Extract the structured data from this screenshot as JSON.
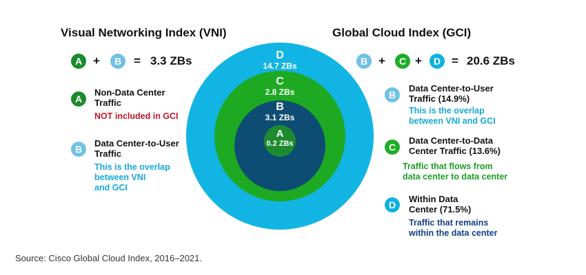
{
  "colors": {
    "a_green": "#1b8a2e",
    "b_lightblue": "#6fc1e6",
    "c_green": "#1cae26",
    "d_cyan": "#0fb1e0",
    "ring_d": "#12b4e3",
    "ring_c": "#1daa22",
    "ring_b": "#0e4d73",
    "ring_a": "#1c8a2f",
    "red_note": "#c0192b",
    "cyan_note": "#17a9d8",
    "green_note": "#1c9e22",
    "navy_note": "#123f86"
  },
  "vni": {
    "title": "Visual Networking Index (VNI)",
    "equation": {
      "terms": [
        "A",
        "B"
      ],
      "plus": "+",
      "equals": "=",
      "result": "3.3 ZBs"
    },
    "items": [
      {
        "badge": "A",
        "title_line1": "Non-Data Center",
        "title_line2": "Traffic",
        "note_lines": [
          "NOT included in GCI"
        ]
      },
      {
        "badge": "B",
        "title_line1": "Data Center-to-User",
        "title_line2": "Traffic",
        "note_lines": [
          "This is the overlap",
          "between VNI",
          "and GCI"
        ]
      }
    ]
  },
  "gci": {
    "title": "Global Cloud Index (GCI)",
    "equation": {
      "terms": [
        "B",
        "C",
        "D"
      ],
      "plus": "+",
      "equals": "=",
      "result": "20.6 ZBs"
    },
    "items": [
      {
        "badge": "B",
        "title_line1": "Data Center-to-User",
        "title_line2": "Traffic (14.9%)",
        "note_lines": [
          "This is the overlap",
          "between VNI and GCI"
        ]
      },
      {
        "badge": "C",
        "title_line1": "Data Center-to-Data",
        "title_line2": "Center Traffic (13.6%)",
        "note_lines": [
          "Traffic that flows from",
          "data center to data center"
        ]
      },
      {
        "badge": "D",
        "title_line1": "Within Data",
        "title_line2": "Center (71.5%)",
        "note_lines": [
          "Traffic that remains",
          "within the data center"
        ]
      }
    ]
  },
  "rings": [
    {
      "letter": "D",
      "value": "14.7 ZBs"
    },
    {
      "letter": "C",
      "value": "2.8 ZBs"
    },
    {
      "letter": "B",
      "value": "3.1 ZBs"
    },
    {
      "letter": "A",
      "value": "0.2 ZBs"
    }
  ],
  "source": "Source: Cisco Global Cloud Index, 2016–2021."
}
